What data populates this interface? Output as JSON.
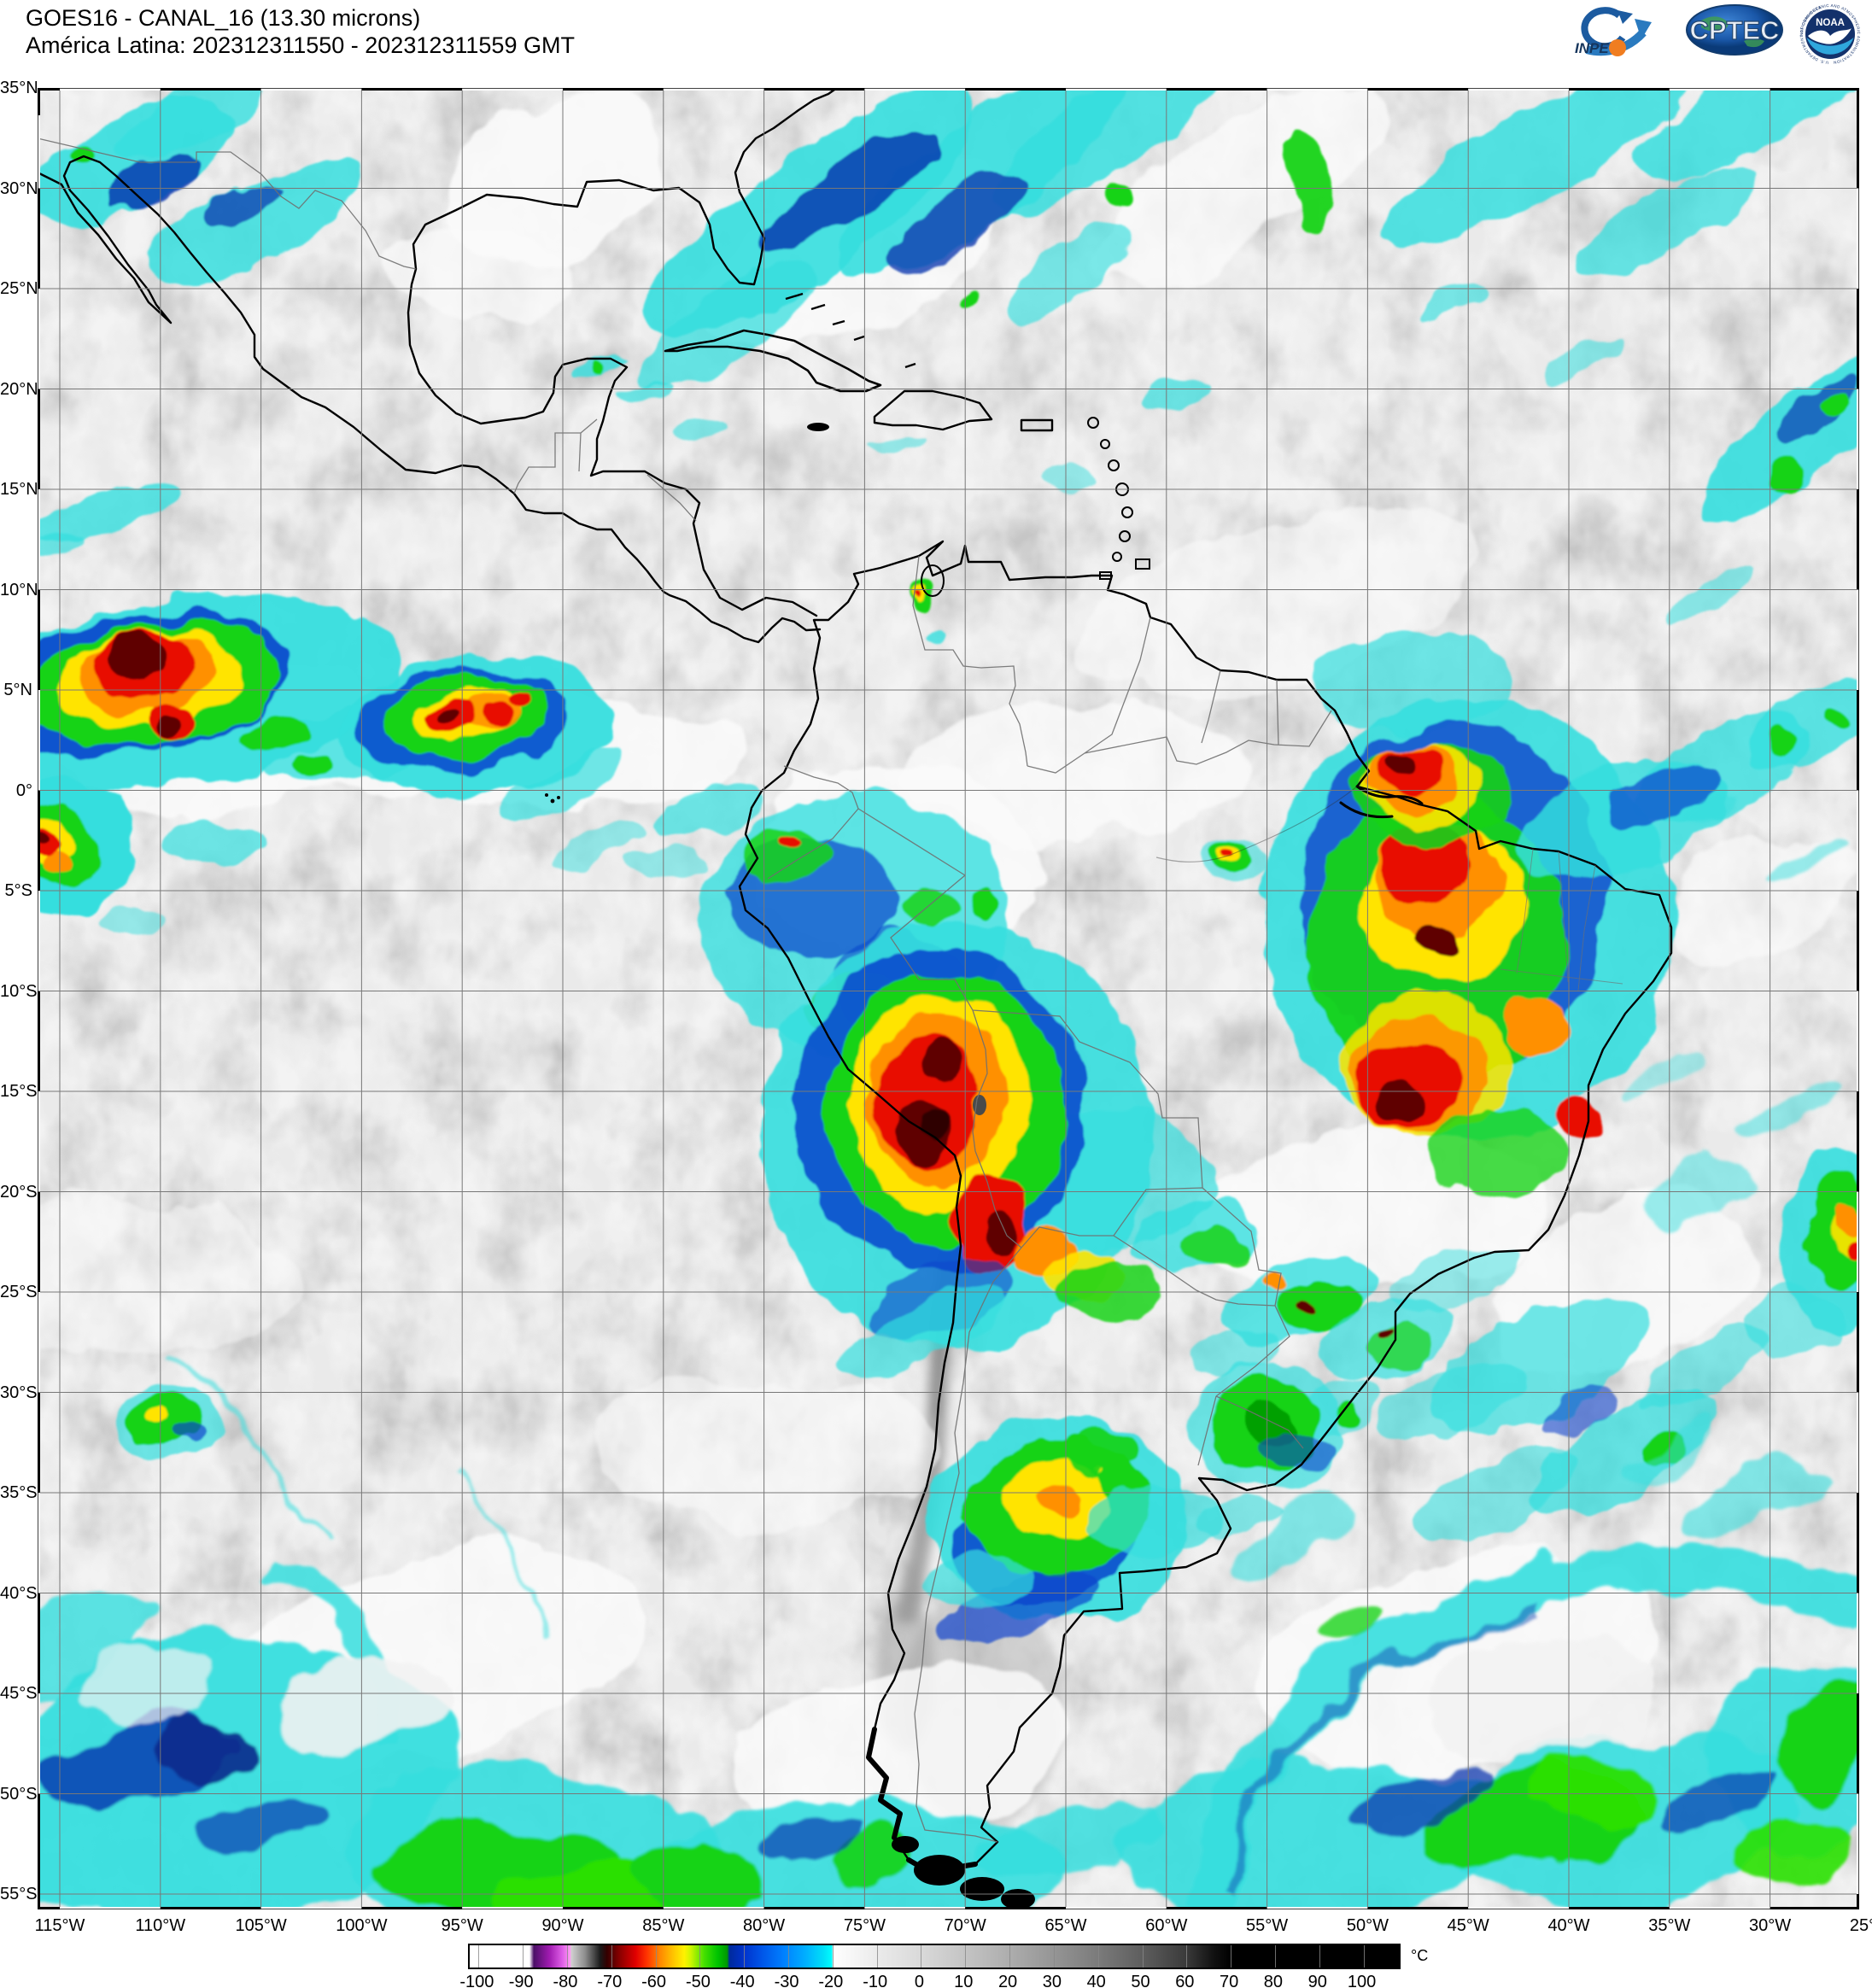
{
  "header": {
    "line1": "GOES16 - CANAL_16 (13.30 microns)",
    "line2": "América Latina: 202312311550 - 202312311559 GMT"
  },
  "logos": {
    "inpe_label": "INPE",
    "cptec_label": "CPTEC",
    "noaa_label": "NOAA",
    "noaa_ring_top": "NATIONAL OCEANIC AND ATMOSPHERIC ADMINISTRATION",
    "noaa_ring_bottom": "U.S. DEPARTMENT OF COMMERCE"
  },
  "map": {
    "lat_labels": [
      "35°N",
      "30°N",
      "25°N",
      "20°N",
      "15°N",
      "10°N",
      "5°N",
      "0°",
      "5°S",
      "10°S",
      "15°S",
      "20°S",
      "25°S",
      "30°S",
      "35°S",
      "40°S",
      "45°S",
      "50°S",
      "55°S"
    ],
    "lon_labels": [
      "115°W",
      "110°W",
      "105°W",
      "100°W",
      "95°W",
      "90°W",
      "85°W",
      "80°W",
      "75°W",
      "70°W",
      "65°W",
      "60°W",
      "55°W",
      "50°W",
      "45°W",
      "40°W",
      "35°W",
      "30°W",
      "25°W"
    ],
    "grid_color": "#787878",
    "coast_color": "#000000",
    "border_color": "#707070",
    "background_gray": "#c6c6c6"
  },
  "colorbar": {
    "unit": "°C",
    "tick_values": [
      -100,
      -90,
      -80,
      -70,
      -60,
      -50,
      -40,
      -30,
      -20,
      -10,
      0,
      10,
      20,
      30,
      40,
      50,
      60,
      70,
      80,
      90,
      100
    ],
    "tick_labels": [
      "-100",
      "-90",
      "-80",
      "-70",
      "-60",
      "-50",
      "-40",
      "-30",
      "-20",
      "-10",
      "0",
      "10",
      "20",
      "30",
      "40",
      "50",
      "60",
      "70",
      "80",
      "90",
      "100"
    ],
    "min": -102,
    "max": 108,
    "stops": [
      [
        -102,
        "#ffffff"
      ],
      [
        -88.5,
        "#ffffff"
      ],
      [
        -87.5,
        "#4a0e66"
      ],
      [
        -84,
        "#a01bb0"
      ],
      [
        -81,
        "#e060e8"
      ],
      [
        -79.3,
        "#ff9cf2"
      ],
      [
        -79,
        "#cfcfcf"
      ],
      [
        -76,
        "#8f8f8f"
      ],
      [
        -72.5,
        "#1a1a1a"
      ],
      [
        -71,
        "#330000"
      ],
      [
        -68,
        "#8c0000"
      ],
      [
        -64.5,
        "#e00000"
      ],
      [
        -62,
        "#ff3300"
      ],
      [
        -59,
        "#ff8800"
      ],
      [
        -56,
        "#ffc400"
      ],
      [
        -53.5,
        "#fff200"
      ],
      [
        -52,
        "#ccf500"
      ],
      [
        -49,
        "#44e000"
      ],
      [
        -46,
        "#00c400"
      ],
      [
        -43.8,
        "#009900"
      ],
      [
        -43.3,
        "#002a9c"
      ],
      [
        -40,
        "#0033cc"
      ],
      [
        -36,
        "#0055e8"
      ],
      [
        -31,
        "#0080ff"
      ],
      [
        -26,
        "#00b0ff"
      ],
      [
        -22,
        "#00e0f8"
      ],
      [
        -20.1,
        "#00ffff"
      ],
      [
        -20,
        "#ffffff"
      ],
      [
        -10,
        "#ebebeb"
      ],
      [
        0,
        "#d9d9d9"
      ],
      [
        10,
        "#c4c4c4"
      ],
      [
        20,
        "#adadad"
      ],
      [
        30,
        "#959595"
      ],
      [
        40,
        "#7b7b7b"
      ],
      [
        50,
        "#5e5e5e"
      ],
      [
        60,
        "#3a3a3a"
      ],
      [
        66,
        "#121212"
      ],
      [
        70,
        "#000000"
      ],
      [
        108,
        "#000000"
      ]
    ]
  }
}
